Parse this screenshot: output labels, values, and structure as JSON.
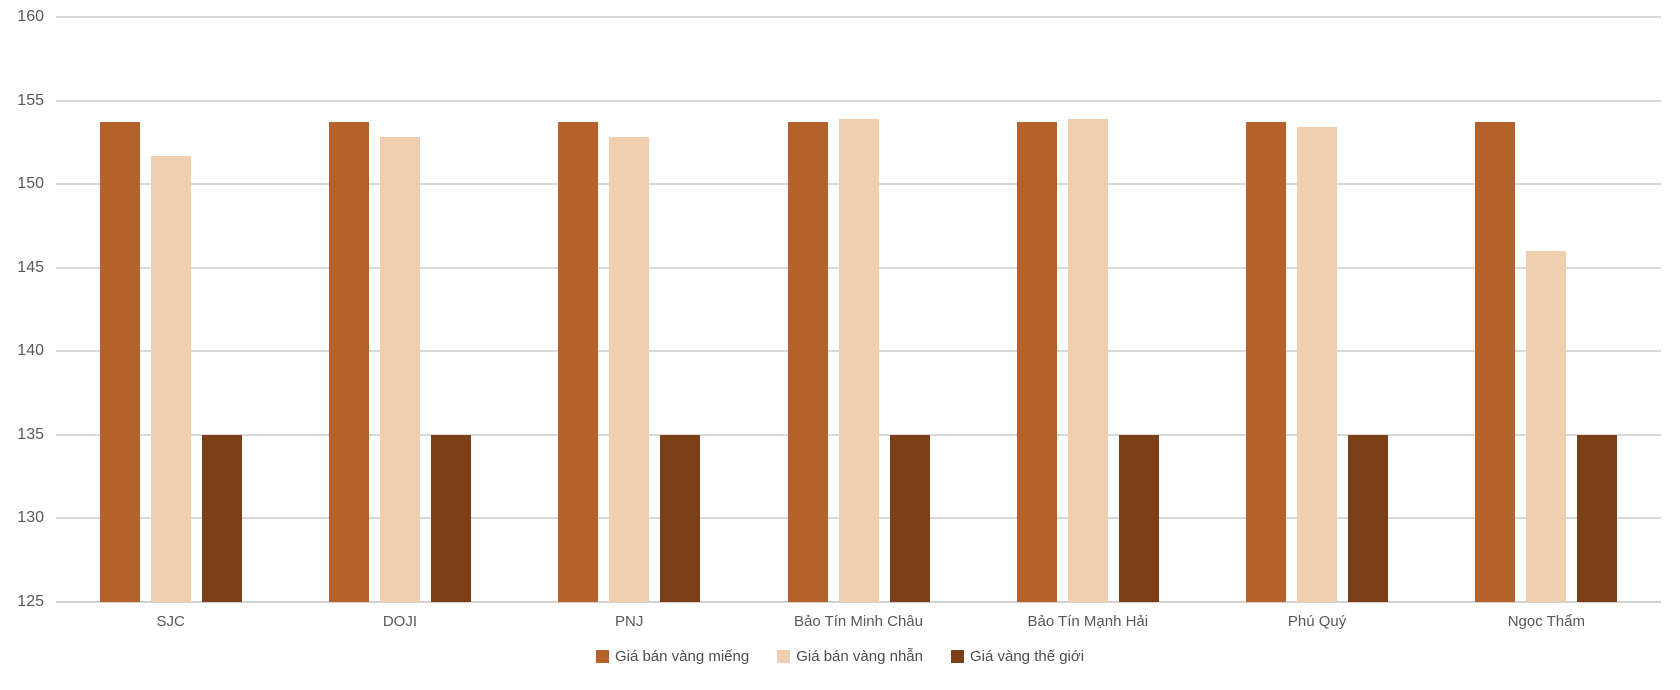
{
  "chart_data": {
    "type": "bar",
    "title": "",
    "xlabel": "",
    "ylabel": "",
    "categories": [
      "SJC",
      "DOJI",
      "PNJ",
      "Bảo Tín Minh Châu",
      "Bảo Tín Mạnh Hải",
      "Phú Quý",
      "Ngọc Thẩm"
    ],
    "series": [
      {
        "name": "Giá bán vàng miếng",
        "color": "#B5622B",
        "values": [
          153.7,
          153.7,
          153.7,
          153.7,
          153.7,
          153.7,
          153.7
        ]
      },
      {
        "name": "Giá bán vàng nhẫn",
        "color": "#F0CEB0",
        "values": [
          151.7,
          152.8,
          152.8,
          153.9,
          153.9,
          153.4,
          146.0
        ]
      },
      {
        "name": "Giá vàng thế giới",
        "color": "#7B4018",
        "values": [
          135.0,
          135.0,
          135.0,
          135.0,
          135.0,
          135.0,
          135.0
        ]
      }
    ],
    "ylim": [
      125,
      160
    ],
    "yticks": [
      125,
      130,
      135,
      140,
      145,
      150,
      155,
      160
    ],
    "grid": true,
    "legend_position": "bottom"
  },
  "colors": {
    "background": "#FFFFFF",
    "gridline": "#D9D9D9",
    "axis_line": "#D2D2D2",
    "tick_label": "#595959",
    "category_label": "#595959",
    "legend_label": "#4D4D4D"
  }
}
